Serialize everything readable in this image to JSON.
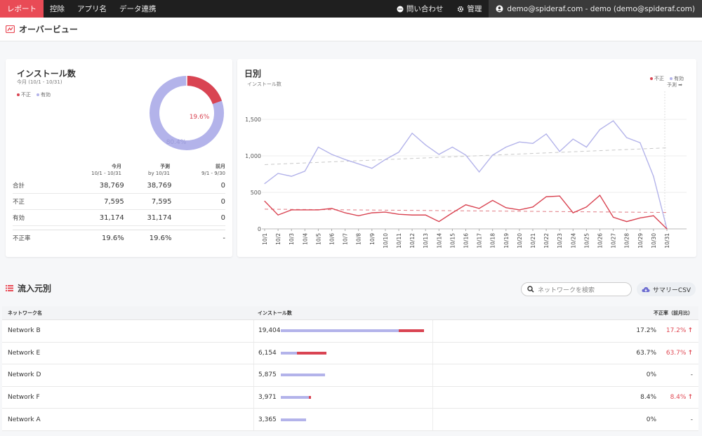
{
  "nav": {
    "items": [
      "レポート",
      "控除",
      "アプリ名",
      "データ連携"
    ],
    "contact": "問い合わせ",
    "admin": "管理",
    "user": "demo@spideraf.com - demo (demo@spideraf.com)"
  },
  "page": {
    "title": "オーバービュー"
  },
  "installs": {
    "title": "インストール数",
    "subtitle": "今月 (10/1 - 10/31)",
    "legend": {
      "fraud": "不正",
      "valid": "有効"
    },
    "donut": {
      "fraud_pct_label": "19.6%",
      "valid_pct_label": "80.4%",
      "fraud_fraction": 0.196
    },
    "columns": [
      {
        "title": "今月",
        "sub": "10/1 - 10/31"
      },
      {
        "title": "予測",
        "sub": "by 10/31"
      },
      {
        "title": "前月",
        "sub": "9/1 - 9/30"
      }
    ],
    "rows": [
      {
        "label": "合計",
        "values": [
          "38,769",
          "38,769",
          "0"
        ]
      },
      {
        "label": "不正",
        "values": [
          "7,595",
          "7,595",
          "0"
        ]
      },
      {
        "label": "有効",
        "values": [
          "31,174",
          "31,174",
          "0"
        ]
      },
      {
        "label": "不正率",
        "values": [
          "19.6%",
          "19.6%",
          "-"
        ]
      }
    ]
  },
  "daily": {
    "title": "日別",
    "subtitle": "インストール数",
    "legend": {
      "fraud": "不正",
      "valid": "有効"
    },
    "forecast_label": "予測 ➡"
  },
  "chart_data": {
    "type": "line",
    "title": "日別",
    "ylabel": "インストール数",
    "ylim": [
      0,
      1500
    ],
    "yticks": [
      "0",
      "500",
      "1,000",
      "1,500"
    ],
    "categories": [
      "10/1",
      "10/2",
      "10/3",
      "10/4",
      "10/5",
      "10/6",
      "10/7",
      "10/8",
      "10/9",
      "10/10",
      "10/11",
      "10/12",
      "10/13",
      "10/14",
      "10/15",
      "10/16",
      "10/17",
      "10/18",
      "10/19",
      "10/20",
      "10/21",
      "10/22",
      "10/23",
      "10/24",
      "10/25",
      "10/26",
      "10/27",
      "10/28",
      "10/29",
      "10/30",
      "10/31"
    ],
    "series": [
      {
        "name": "有効",
        "color": "#b3b3ea",
        "values": [
          620,
          760,
          720,
          790,
          1120,
          1020,
          950,
          890,
          830,
          950,
          1050,
          1310,
          1150,
          1020,
          1120,
          1010,
          780,
          1010,
          1120,
          1190,
          1170,
          1300,
          1060,
          1230,
          1120,
          1360,
          1480,
          1250,
          1180,
          720,
          0
        ]
      },
      {
        "name": "不正",
        "color": "#d94452",
        "values": [
          380,
          190,
          260,
          260,
          260,
          280,
          220,
          180,
          220,
          230,
          200,
          190,
          190,
          100,
          220,
          330,
          280,
          390,
          290,
          260,
          300,
          440,
          450,
          220,
          300,
          460,
          160,
          100,
          150,
          180,
          0
        ]
      }
    ],
    "trend": {
      "valid": [
        880,
        1110
      ],
      "fraud": [
        270,
        225
      ]
    }
  },
  "sources": {
    "title": "流入元別",
    "search_placeholder": "ネットワークを検索",
    "csv_label": "サマリーCSV",
    "headers": {
      "name": "ネットワーク名",
      "installs": "インストール数",
      "rate": "不正率（前月比）"
    },
    "rows": [
      {
        "name": "Network B",
        "installs": "19,404",
        "valid_frac": 0.8,
        "fraud_frac": 0.17,
        "rate": "17.2%",
        "cmp": "17.2%",
        "up": true
      },
      {
        "name": "Network E",
        "installs": "6,154",
        "valid_frac": 0.11,
        "fraud_frac": 0.2,
        "rate": "63.7%",
        "cmp": "63.7%",
        "up": true
      },
      {
        "name": "Network D",
        "installs": "5,875",
        "valid_frac": 0.3,
        "fraud_frac": 0.0,
        "rate": "0%",
        "cmp": "-",
        "up": false
      },
      {
        "name": "Network F",
        "installs": "3,971",
        "valid_frac": 0.19,
        "fraud_frac": 0.015,
        "rate": "8.4%",
        "cmp": "8.4%",
        "up": true
      },
      {
        "name": "Network A",
        "installs": "3,365",
        "valid_frac": 0.17,
        "fraud_frac": 0.0,
        "rate": "0%",
        "cmp": "-",
        "up": false
      }
    ]
  }
}
